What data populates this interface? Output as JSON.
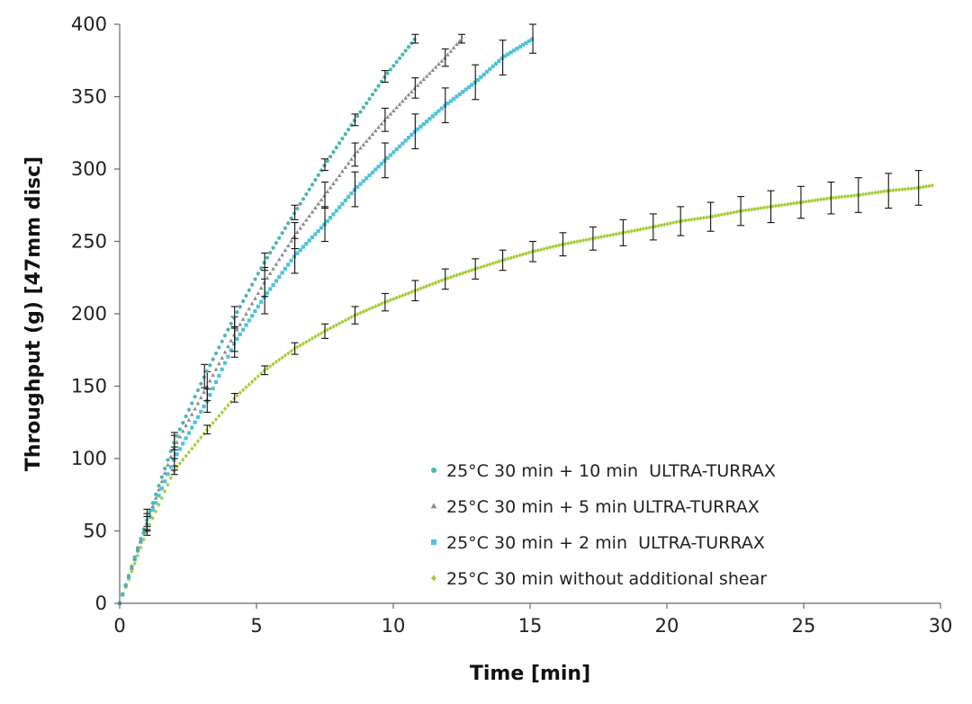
{
  "chart_data": {
    "type": "scatter",
    "xlabel": "Time [min]",
    "ylabel": "Throughput (g) [47mm disc]",
    "xlim": [
      0,
      30
    ],
    "ylim": [
      0,
      400
    ],
    "xticks": [
      "0",
      "5",
      "10",
      "15",
      "20",
      "25",
      "30"
    ],
    "yticks": [
      "0",
      "50",
      "100",
      "150",
      "200",
      "250",
      "300",
      "350",
      "400"
    ],
    "grid": false,
    "legend_position": "bottom-right",
    "series": [
      {
        "name": "25°C 30 min + 10 min  ULTRA-TURRAX",
        "color": "#4DB6AC",
        "marker": "circle",
        "x_end": 10.8,
        "y_end": 390,
        "points": [
          [
            0,
            0
          ],
          [
            1,
            58
          ],
          [
            2,
            112
          ],
          [
            3.1,
            157
          ],
          [
            4.2,
            198
          ],
          [
            5.3,
            236
          ],
          [
            6.4,
            270
          ],
          [
            7.5,
            303
          ],
          [
            8.6,
            334
          ],
          [
            9.7,
            364
          ],
          [
            10.8,
            390
          ]
        ],
        "errors": [
          0,
          7,
          6,
          8,
          7,
          6,
          5,
          4,
          4,
          4,
          3
        ]
      },
      {
        "name": "25°C 30 min + 5 min ULTRA-TURRAX",
        "color": "#8C8C8C",
        "marker": "triangle",
        "x_end": 12.5,
        "y_end": 390,
        "points": [
          [
            0,
            0
          ],
          [
            1,
            56
          ],
          [
            2,
            108
          ],
          [
            3.2,
            150
          ],
          [
            4.2,
            186
          ],
          [
            5.3,
            222
          ],
          [
            6.4,
            254
          ],
          [
            7.5,
            282
          ],
          [
            8.6,
            310
          ],
          [
            9.7,
            334
          ],
          [
            10.8,
            356
          ],
          [
            11.9,
            377
          ],
          [
            12.5,
            390
          ]
        ],
        "errors": [
          0,
          6,
          8,
          10,
          12,
          10,
          9,
          9,
          8,
          8,
          7,
          6,
          3
        ]
      },
      {
        "name": "25°C 30 min + 2 min  ULTRA-TURRAX",
        "color": "#4FC3D9",
        "marker": "square",
        "x_end": 15.1,
        "y_end": 390,
        "points": [
          [
            0,
            0
          ],
          [
            1,
            55
          ],
          [
            2,
            100
          ],
          [
            3.2,
            140
          ],
          [
            4.2,
            180
          ],
          [
            5.3,
            212
          ],
          [
            6.4,
            240
          ],
          [
            7.5,
            262
          ],
          [
            8.6,
            286
          ],
          [
            9.7,
            306
          ],
          [
            10.8,
            326
          ],
          [
            11.9,
            344
          ],
          [
            13,
            360
          ],
          [
            14,
            377
          ],
          [
            15.1,
            390
          ]
        ],
        "errors": [
          0,
          5,
          8,
          8,
          10,
          12,
          12,
          12,
          12,
          12,
          12,
          12,
          12,
          12,
          10
        ]
      },
      {
        "name": "25°C 30 min without additional shear",
        "color": "#A6CE39",
        "marker": "diamond",
        "x_end": 29.8,
        "y_end": 289,
        "points": [
          [
            0,
            0
          ],
          [
            1,
            50
          ],
          [
            2,
            92
          ],
          [
            3.2,
            120
          ],
          [
            4.2,
            142
          ],
          [
            5.3,
            161
          ],
          [
            6.4,
            176
          ],
          [
            7.5,
            188
          ],
          [
            8.6,
            199
          ],
          [
            9.7,
            208
          ],
          [
            10.8,
            216
          ],
          [
            11.9,
            224
          ],
          [
            13,
            231
          ],
          [
            14,
            237
          ],
          [
            15.1,
            243
          ],
          [
            16.2,
            248
          ],
          [
            17.3,
            252
          ],
          [
            18.4,
            256
          ],
          [
            19.5,
            260
          ],
          [
            20.5,
            264
          ],
          [
            21.6,
            267
          ],
          [
            22.7,
            271
          ],
          [
            23.8,
            274
          ],
          [
            24.9,
            277
          ],
          [
            26,
            280
          ],
          [
            27,
            282
          ],
          [
            28.1,
            285
          ],
          [
            29.2,
            287
          ],
          [
            29.8,
            289
          ]
        ],
        "errors": [
          0,
          3,
          3,
          3,
          3,
          3,
          4,
          5,
          6,
          6,
          7,
          7,
          7,
          7,
          7,
          8,
          8,
          9,
          9,
          10,
          10,
          10,
          11,
          11,
          11,
          12,
          12,
          12,
          0
        ]
      }
    ]
  }
}
